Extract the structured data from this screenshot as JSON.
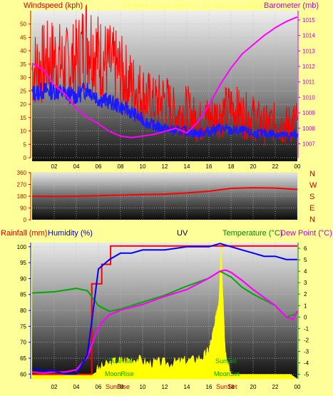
{
  "top_panel": {
    "left_title": "Windspeed (kph)",
    "right_title": "Barometer (mb)",
    "center_title": "24 hour graph ending: 13 February 2011"
  },
  "wind_dir_panel": {
    "compass": [
      "N",
      "W",
      "S",
      "E",
      "N"
    ]
  },
  "bottom_panel": {
    "title_rain": "Rainfall (mm)",
    "title_humidity": "Humidity (%)",
    "title_uv": "UV",
    "title_temp": "Temperature (°C)",
    "title_dew": "Dew Point (°C)"
  },
  "annotations": {
    "sunrise": "SunRise",
    "sunset": "SunSet",
    "moonrise": "MoonRise",
    "moonset": "MoonSet"
  },
  "colors": {
    "gust": "#ff0000",
    "avg_wind": "#1a1aff",
    "barometer": "#ff00ff",
    "wind_dir": "#ff0000",
    "humidity": "#0000ff",
    "rain": "#ff0000",
    "uv": "#ffff00",
    "temperature": "#00aa00",
    "dew_point": "#ff00ff"
  },
  "chart_data": [
    {
      "type": "line",
      "x_ticks": [
        "02",
        "04",
        "06",
        "08",
        "10",
        "12",
        "14",
        "16",
        "18",
        "20",
        "22",
        "00"
      ],
      "y_left_ticks": [
        0,
        5,
        10,
        15,
        20,
        25,
        30,
        35,
        40,
        45,
        50
      ],
      "y_right_ticks": [
        1007,
        1008,
        1009,
        1010,
        1011,
        1012,
        1013,
        1014,
        1015
      ],
      "ylim_left": [
        0,
        55
      ],
      "ylim_right": [
        1006.1,
        1015.6
      ],
      "series": [
        {
          "name": "Windspeed (kph)",
          "axis": "left",
          "x": [
            0,
            1,
            2,
            3,
            4,
            5,
            6,
            7,
            8,
            9,
            10,
            11,
            12,
            13,
            14,
            15,
            16,
            17,
            18,
            19,
            20,
            21,
            22,
            23,
            24
          ],
          "values": [
            33,
            35,
            37,
            34,
            36,
            45,
            38,
            35,
            32,
            27,
            24,
            20,
            22,
            16,
            18,
            13,
            15,
            16,
            19,
            16,
            15,
            12,
            13,
            12,
            14
          ]
        },
        {
          "name": "Avg Windspeed (kph)",
          "axis": "left",
          "x": [
            0,
            1,
            2,
            3,
            4,
            5,
            6,
            7,
            8,
            9,
            10,
            11,
            12,
            13,
            14,
            15,
            16,
            17,
            18,
            19,
            20,
            21,
            22,
            23,
            24
          ],
          "values": [
            24,
            25,
            25,
            24,
            23,
            26,
            22,
            21,
            19,
            17,
            14,
            12,
            11,
            10,
            10,
            9,
            10,
            11,
            10,
            10,
            9,
            9,
            9,
            8,
            9
          ]
        },
        {
          "name": "Barometer (mb)",
          "axis": "right",
          "x": [
            0,
            1,
            2,
            3,
            4,
            5,
            6,
            7,
            8,
            9,
            10,
            11,
            12,
            13,
            14,
            15,
            16,
            17,
            18,
            19,
            20,
            21,
            22,
            23,
            24
          ],
          "values": [
            1012.2,
            1011.8,
            1010.8,
            1010.2,
            1009.3,
            1008.7,
            1008.3,
            1007.8,
            1007.5,
            1007.4,
            1007.5,
            1007.6,
            1007.8,
            1008.0,
            1007.7,
            1008.4,
            1009.5,
            1010.8,
            1011.9,
            1012.8,
            1013.4,
            1014.0,
            1014.5,
            1014.9,
            1015.2
          ]
        }
      ]
    },
    {
      "type": "line",
      "y_ticks": [
        0,
        90,
        180,
        270,
        360
      ],
      "ylim": [
        0,
        360
      ],
      "series": [
        {
          "name": "Wind Direction",
          "x": [
            0,
            2,
            4,
            6,
            8,
            10,
            12,
            14,
            16,
            18,
            20,
            22,
            24
          ],
          "values": [
            180,
            178,
            180,
            184,
            188,
            192,
            196,
            205,
            218,
            240,
            245,
            242,
            232
          ]
        }
      ]
    },
    {
      "type": "line",
      "x_ticks": [
        "02",
        "04",
        "06",
        "08",
        "10",
        "12",
        "14",
        "16",
        "18",
        "20",
        "22",
        "00"
      ],
      "y_left_ticks": [
        60,
        65,
        70,
        75,
        80,
        85,
        90,
        95,
        100
      ],
      "y_right_ticks": [
        -5,
        -4,
        -3,
        -2,
        -1,
        0,
        1,
        2,
        3,
        4,
        5,
        6
      ],
      "ylim_left": [
        58.5,
        101.3
      ],
      "ylim_right": [
        -5.4,
        6.5
      ],
      "series": [
        {
          "name": "Humidity (%)",
          "axis": "left",
          "x": [
            0,
            1,
            2,
            3,
            4,
            5,
            5.6,
            6,
            7,
            8,
            9,
            10,
            12,
            14,
            16,
            17,
            18,
            19,
            20,
            21,
            22,
            23,
            24
          ],
          "values": [
            62,
            61,
            61,
            60,
            60,
            66,
            82,
            93,
            96,
            98,
            98,
            99,
            99,
            100,
            100,
            101,
            100,
            99,
            98,
            97,
            97,
            96,
            96
          ]
        },
        {
          "name": "Rainfall (mm)",
          "axis": "right",
          "x": [
            0,
            5.4,
            5.4,
            6.3,
            6.3,
            7.1,
            7.1,
            24
          ],
          "values": [
            -5,
            -5,
            2.9,
            2.9,
            4.6,
            4.6,
            6.2,
            6.2
          ]
        },
        {
          "name": "Temperature (°C)",
          "axis": "right",
          "x": [
            0,
            2,
            4,
            5,
            6,
            7,
            8,
            10,
            12,
            14,
            16,
            17,
            18,
            19,
            20,
            21,
            22,
            23,
            24
          ],
          "values": [
            2.1,
            2.2,
            2.5,
            2.3,
            1.0,
            0.5,
            0.7,
            1.3,
            1.9,
            2.7,
            3.4,
            4.0,
            3.5,
            2.6,
            2.0,
            1.5,
            1.0,
            0.0,
            0.3
          ]
        },
        {
          "name": "Dew Point (°C)",
          "axis": "right",
          "x": [
            0,
            1,
            2,
            3,
            4,
            5,
            5.8,
            6.3,
            7,
            8,
            10,
            12,
            14,
            16,
            17,
            17.5,
            18,
            19,
            20,
            21,
            22,
            23,
            23.6,
            24
          ],
          "values": [
            -4.8,
            -4.9,
            -4.8,
            -4.8,
            -4.6,
            -3.5,
            -1.4,
            -0.5,
            0.2,
            0.6,
            1.1,
            1.8,
            2.4,
            3.4,
            4.0,
            4.1,
            3.9,
            3.2,
            2.4,
            1.7,
            1.0,
            0.0,
            -0.2,
            0.5
          ]
        },
        {
          "name": "UV",
          "axis": "right",
          "x": [
            0,
            5.5,
            6.5,
            7.5,
            8.5,
            9.5,
            10.5,
            11.5,
            12.5,
            13.5,
            14.5,
            15.5,
            16.0,
            16.5,
            16.9,
            17.1,
            17.5,
            18,
            24
          ],
          "values": [
            -5,
            -5,
            -4.4,
            -4.0,
            -3.9,
            -3.8,
            -4.2,
            -4.1,
            -4.2,
            -4.0,
            -3.9,
            -3.6,
            -3.0,
            -1.0,
            1.5,
            6.2,
            -3.5,
            -5,
            -5
          ]
        }
      ]
    }
  ]
}
